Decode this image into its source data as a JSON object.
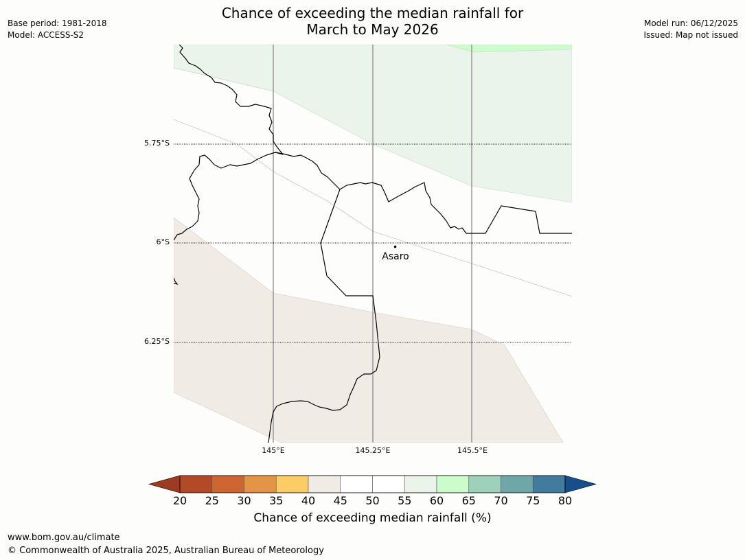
{
  "title": {
    "line1": "Chance of exceeding the median rainfall for",
    "line2": "March to May 2026"
  },
  "meta_left": {
    "base_period": "Base period: 1981-2018",
    "model": "Model: ACCESS-S2"
  },
  "meta_right": {
    "model_run": "Model run: 06/12/2025",
    "issued": "Issued: Map not issued"
  },
  "map": {
    "lat_labels": [
      "5.75°S",
      "6°S",
      "6.25°S"
    ],
    "lon_labels": [
      "145°E",
      "145.25°E",
      "145.5°E"
    ],
    "place": {
      "name": "Asaro",
      "icon": "town-dot-icon"
    },
    "colors": {
      "fill_45_50": "#f1ebe6",
      "fill_55_60": "#eaf4ea",
      "fill_60_65": "#ccfccc",
      "background": "#fdfefc"
    }
  },
  "colorbar": {
    "ticks": [
      "20",
      "25",
      "30",
      "35",
      "40",
      "45",
      "50",
      "55",
      "60",
      "65",
      "70",
      "75",
      "80"
    ],
    "colors": [
      "#9c3b22",
      "#b24a25",
      "#cd6630",
      "#e39444",
      "#fecc66",
      "#f1ebe6",
      "#ffffff",
      "#ffffff",
      "#eaf4ea",
      "#ccfccc",
      "#9dd1bc",
      "#6fa6a8",
      "#417b9e",
      "#174f8c"
    ],
    "label": "Chance of exceeding median rainfall (%)"
  },
  "footer": {
    "url": "www.bom.gov.au/climate",
    "copyright": "© Commonwealth of Australia 2025, Australian Bureau of Meteorology"
  }
}
